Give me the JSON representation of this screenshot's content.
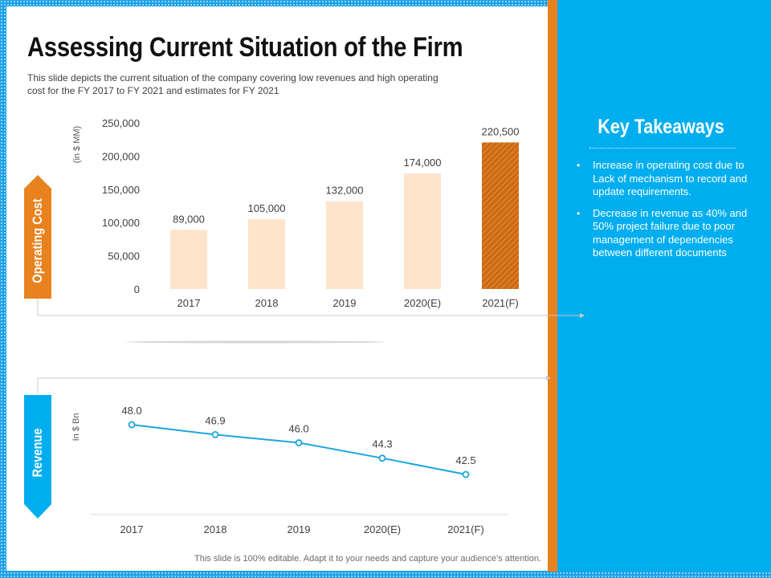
{
  "slide": {
    "title": "Assessing Current Situation of the Firm",
    "subtitle": "This slide depicts the current situation of the company covering low revenues and high operating cost for the FY 2017 to FY 2021 and estimates for FY 2021",
    "footer": "This slide is 100% editable. Adapt it to your needs and capture your audience's attention."
  },
  "tabs": {
    "operating_cost": "Operating Cost",
    "revenue": "Revenue"
  },
  "key_takeaways": {
    "title": "Key Takeaways",
    "items": [
      "Increase in operating cost due to Lack of mechanism to record and update requirements.",
      "Decrease in revenue as 40% and  50% project failure due to poor management of dependencies between different documents"
    ]
  },
  "colors": {
    "bar_fill": "#fde4cb",
    "bar_forecast": "#cc6a12",
    "line": "#1aa7df",
    "orange": "#e8821e",
    "blue": "#00aeef"
  },
  "chart_data": [
    {
      "type": "bar",
      "ylabel": "(in $ MM)",
      "categories": [
        "2017",
        "2018",
        "2019",
        "2020(E)",
        "2021(F)"
      ],
      "values": [
        89000,
        105000,
        132000,
        174000,
        220500
      ],
      "labels": [
        "89,000",
        "105,000",
        "132,000",
        "174,000",
        "220,500"
      ],
      "yticks": [
        0,
        50000,
        100000,
        150000,
        200000,
        250000
      ],
      "ytick_labels": [
        "0",
        "50,000",
        "100,000",
        "150,000",
        "200,000",
        "250,000"
      ],
      "ylim": [
        0,
        250000
      ],
      "forecast_index": 4,
      "grid": false
    },
    {
      "type": "line",
      "ylabel": "In $ Bn",
      "categories": [
        "2017",
        "2018",
        "2019",
        "2020(E)",
        "2021(F)"
      ],
      "values": [
        48.0,
        46.9,
        46.0,
        44.3,
        42.5
      ],
      "labels": [
        "48.0",
        "46.9",
        "46.0",
        "44.3",
        "42.5"
      ],
      "grid": false
    }
  ]
}
